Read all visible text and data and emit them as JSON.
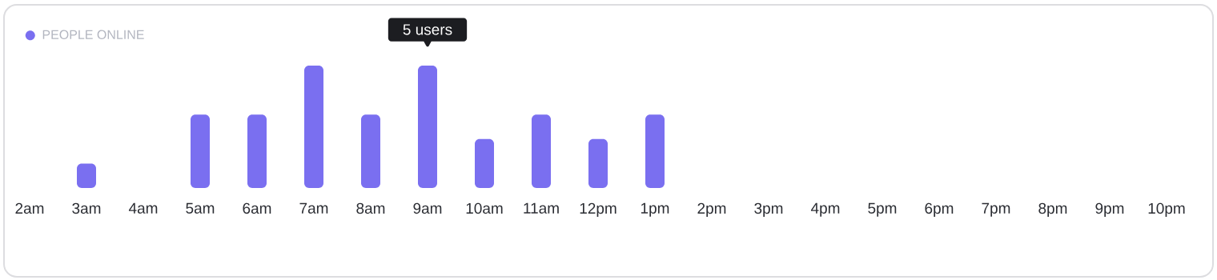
{
  "chart_data": {
    "type": "bar",
    "categories": [
      "2am",
      "3am",
      "4am",
      "5am",
      "6am",
      "7am",
      "8am",
      "9am",
      "10am",
      "11am",
      "12pm",
      "1pm",
      "2pm",
      "3pm",
      "4pm",
      "5pm",
      "6pm",
      "7pm",
      "8pm",
      "9pm",
      "10pm"
    ],
    "series": [
      {
        "name": "PEOPLE ONLINE",
        "color": "#7a6ff0",
        "values": [
          0,
          1,
          0,
          3,
          3,
          5,
          3,
          5,
          2,
          3,
          2,
          3,
          0,
          0,
          0,
          0,
          0,
          0,
          0,
          0,
          0
        ],
        "value_labels": [
          null,
          null,
          null,
          null,
          null,
          null,
          null,
          "5 users",
          null,
          null,
          null,
          null,
          null,
          null,
          null,
          null,
          null,
          null,
          null,
          null,
          null
        ]
      }
    ],
    "legend": "top left"
  }
}
